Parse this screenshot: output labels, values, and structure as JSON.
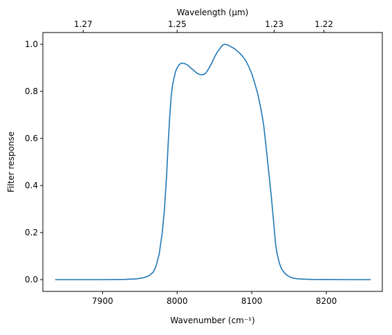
{
  "chart_data": {
    "type": "line",
    "title": "",
    "xlabel": "Wavenumber (cm⁻¹)",
    "ylabel": "Filter response",
    "top_xlabel": "Wavelength (μm)",
    "xlim": [
      7820,
      8275
    ],
    "ylim": [
      -0.05,
      1.05
    ],
    "grid": false,
    "legend": "none",
    "x_ticks": [
      {
        "value": 7900,
        "label": "7900"
      },
      {
        "value": 8000,
        "label": "8000"
      },
      {
        "value": 8100,
        "label": "8100"
      },
      {
        "value": 8200,
        "label": "8200"
      }
    ],
    "y_ticks": [
      {
        "value": 0.0,
        "label": "0.0"
      },
      {
        "value": 0.2,
        "label": "0.2"
      },
      {
        "value": 0.4,
        "label": "0.4"
      },
      {
        "value": 0.6,
        "label": "0.6"
      },
      {
        "value": 0.8,
        "label": "0.8"
      },
      {
        "value": 1.0,
        "label": "1.0"
      }
    ],
    "top_ticks": [
      {
        "wavelength_um": 1.27,
        "label": "1.27"
      },
      {
        "wavelength_um": 1.25,
        "label": "1.25"
      },
      {
        "wavelength_um": 1.23,
        "label": "1.23"
      },
      {
        "wavelength_um": 1.22,
        "label": "1.22"
      }
    ],
    "line_color": "#1f77b4",
    "series": [
      {
        "x": [
          7837,
          7900,
          7930,
          7945,
          7955,
          7962,
          7968,
          7972,
          7976,
          7980,
          7983,
          7986,
          7988,
          7990,
          7992,
          7994,
          7996,
          7998,
          8000,
          8003,
          8006,
          8010,
          8014,
          8018,
          8022,
          8026,
          8030,
          8034,
          8038,
          8042,
          8046,
          8050,
          8054,
          8058,
          8061,
          8064,
          8068,
          8072,
          8076,
          8080,
          8084,
          8088,
          8092,
          8096,
          8100,
          8104,
          8108,
          8112,
          8114,
          8116,
          8118,
          8120,
          8123,
          8126,
          8128,
          8130,
          8132,
          8134,
          8137,
          8140,
          8144,
          8148,
          8152,
          8156,
          8160,
          8170,
          8180,
          8200,
          8230,
          8259
        ],
        "y": [
          0.0,
          0.0,
          0.001,
          0.003,
          0.008,
          0.016,
          0.032,
          0.06,
          0.11,
          0.2,
          0.3,
          0.45,
          0.58,
          0.69,
          0.78,
          0.83,
          0.86,
          0.885,
          0.9,
          0.915,
          0.92,
          0.918,
          0.912,
          0.9,
          0.89,
          0.878,
          0.872,
          0.87,
          0.876,
          0.895,
          0.918,
          0.945,
          0.968,
          0.985,
          0.997,
          1.0,
          0.997,
          0.99,
          0.983,
          0.973,
          0.962,
          0.948,
          0.93,
          0.905,
          0.875,
          0.835,
          0.79,
          0.73,
          0.695,
          0.655,
          0.6,
          0.54,
          0.45,
          0.36,
          0.29,
          0.22,
          0.15,
          0.11,
          0.07,
          0.045,
          0.028,
          0.017,
          0.01,
          0.006,
          0.004,
          0.002,
          0.001,
          0.0005,
          0.0,
          0.0
        ]
      }
    ]
  }
}
